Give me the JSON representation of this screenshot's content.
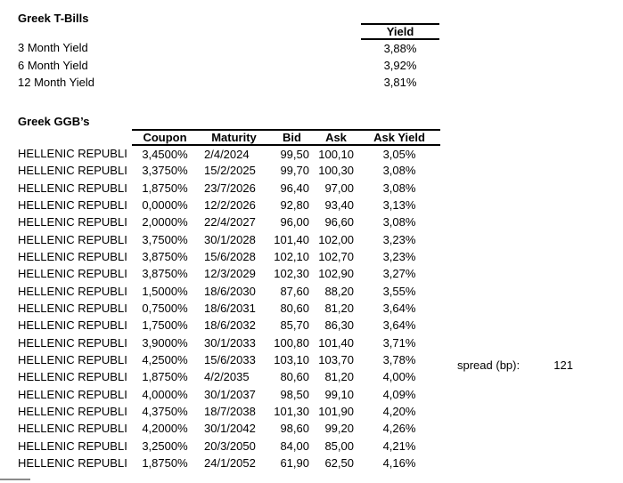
{
  "tbills": {
    "title": "Greek T-Bills",
    "yield_header": "Yield",
    "rows": [
      {
        "label": "3 Month Yield",
        "value": "3,88%"
      },
      {
        "label": "6 Month Yield",
        "value": "3,92%"
      },
      {
        "label": "12 Month Yield",
        "value": "3,81%"
      }
    ]
  },
  "ggbs": {
    "title": "Greek GGB’s",
    "columns": [
      "Coupon",
      "Maturity",
      "Bid",
      "Ask",
      "Ask Yield"
    ],
    "issuer": "HELLENIC REPUBLI",
    "rows": [
      {
        "coupon": "3,4500%",
        "maturity": "2/4/2024",
        "bid": "99,50",
        "ask": "100,10",
        "ask_yield": "3,05%"
      },
      {
        "coupon": "3,3750%",
        "maturity": "15/2/2025",
        "bid": "99,70",
        "ask": "100,30",
        "ask_yield": "3,08%"
      },
      {
        "coupon": "1,8750%",
        "maturity": "23/7/2026",
        "bid": "96,40",
        "ask": "97,00",
        "ask_yield": "3,08%"
      },
      {
        "coupon": "0,0000%",
        "maturity": "12/2/2026",
        "bid": "92,80",
        "ask": "93,40",
        "ask_yield": "3,13%"
      },
      {
        "coupon": "2,0000%",
        "maturity": "22/4/2027",
        "bid": "96,00",
        "ask": "96,60",
        "ask_yield": "3,08%"
      },
      {
        "coupon": "3,7500%",
        "maturity": "30/1/2028",
        "bid": "101,40",
        "ask": "102,00",
        "ask_yield": "3,23%"
      },
      {
        "coupon": "3,8750%",
        "maturity": "15/6/2028",
        "bid": "102,10",
        "ask": "102,70",
        "ask_yield": "3,23%"
      },
      {
        "coupon": "3,8750%",
        "maturity": "12/3/2029",
        "bid": "102,30",
        "ask": "102,90",
        "ask_yield": "3,27%"
      },
      {
        "coupon": "1,5000%",
        "maturity": "18/6/2030",
        "bid": "87,60",
        "ask": "88,20",
        "ask_yield": "3,55%"
      },
      {
        "coupon": "0,7500%",
        "maturity": "18/6/2031",
        "bid": "80,60",
        "ask": "81,20",
        "ask_yield": "3,64%"
      },
      {
        "coupon": "1,7500%",
        "maturity": "18/6/2032",
        "bid": "85,70",
        "ask": "86,30",
        "ask_yield": "3,64%"
      },
      {
        "coupon": "3,9000%",
        "maturity": "30/1/2033",
        "bid": "100,80",
        "ask": "101,40",
        "ask_yield": "3,71%"
      },
      {
        "coupon": "4,2500%",
        "maturity": "15/6/2033",
        "bid": "103,10",
        "ask": "103,70",
        "ask_yield": "3,78%"
      },
      {
        "coupon": "1,8750%",
        "maturity": "4/2/2035",
        "bid": "80,60",
        "ask": "81,20",
        "ask_yield": "4,00%"
      },
      {
        "coupon": "4,0000%",
        "maturity": "30/1/2037",
        "bid": "98,50",
        "ask": "99,10",
        "ask_yield": "4,09%"
      },
      {
        "coupon": "4,3750%",
        "maturity": "18/7/2038",
        "bid": "101,30",
        "ask": "101,90",
        "ask_yield": "4,20%"
      },
      {
        "coupon": "4,2000%",
        "maturity": "30/1/2042",
        "bid": "98,60",
        "ask": "99,20",
        "ask_yield": "4,26%"
      },
      {
        "coupon": "3,2500%",
        "maturity": "20/3/2050",
        "bid": "84,00",
        "ask": "85,00",
        "ask_yield": "4,21%"
      },
      {
        "coupon": "1,8750%",
        "maturity": "24/1/2052",
        "bid": "61,90",
        "ask": "62,50",
        "ask_yield": "4,16%"
      }
    ]
  },
  "spread": {
    "label": "spread (bp):",
    "value": "121"
  },
  "colors": {
    "background": "#ffffff",
    "text": "#000000",
    "border": "#000000"
  }
}
